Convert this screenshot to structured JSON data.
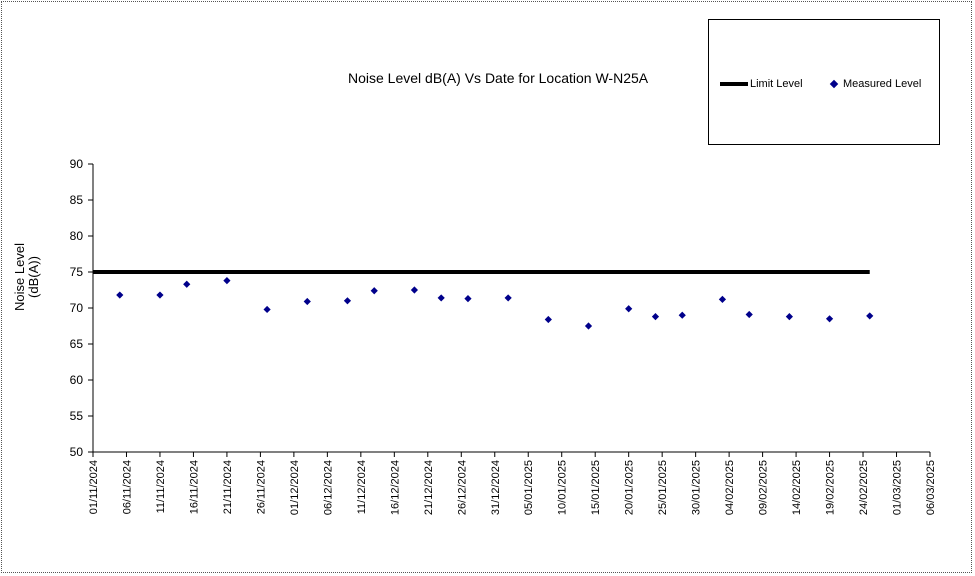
{
  "chart_data": {
    "type": "scatter",
    "title": "Noise Level dB(A) Vs Date for Location W-N25A",
    "ylabel": "Noise Level\n(dB(A))",
    "xlabel": "",
    "ylim": [
      50,
      90
    ],
    "y_ticks": [
      "50",
      "55",
      "60",
      "65",
      "70",
      "75",
      "80",
      "85",
      "90"
    ],
    "x_axis": {
      "start": "2024-11-01",
      "end": "2025-03-06",
      "tick_labels": [
        "01/11/2024",
        "06/11/2024",
        "11/11/2024",
        "16/11/2024",
        "21/11/2024",
        "26/11/2024",
        "01/12/2024",
        "06/12/2024",
        "11/12/2024",
        "16/12/2024",
        "21/12/2024",
        "26/12/2024",
        "31/12/2024",
        "05/01/2025",
        "10/01/2025",
        "15/01/2025",
        "20/01/2025",
        "25/01/2025",
        "30/01/2025",
        "04/02/2025",
        "09/02/2025",
        "14/02/2025",
        "19/02/2025",
        "24/02/2025",
        "01/03/2025",
        "06/03/2025"
      ]
    },
    "grid": false,
    "legend_position": "top-right",
    "series": [
      {
        "name": "Limit Level",
        "kind": "line",
        "color": "#000000",
        "x": [
          "2024-11-01",
          "2025-02-25"
        ],
        "y": [
          75,
          75
        ]
      },
      {
        "name": "Measured Level",
        "kind": "scatter",
        "marker": "diamond",
        "color": "#00008b",
        "x": [
          "2024-11-05",
          "2024-11-11",
          "2024-11-15",
          "2024-11-21",
          "2024-11-27",
          "2024-12-03",
          "2024-12-09",
          "2024-12-13",
          "2024-12-19",
          "2024-12-23",
          "2024-12-27",
          "2025-01-02",
          "2025-01-08",
          "2025-01-14",
          "2025-01-20",
          "2025-01-24",
          "2025-01-28",
          "2025-02-03",
          "2025-02-07",
          "2025-02-13",
          "2025-02-19",
          "2025-02-25"
        ],
        "y": [
          71.8,
          71.8,
          73.3,
          73.8,
          69.8,
          70.9,
          71.0,
          72.4,
          72.5,
          71.4,
          71.3,
          71.4,
          68.4,
          67.5,
          69.9,
          68.8,
          69.0,
          71.2,
          69.1,
          68.8,
          68.5,
          68.9
        ]
      }
    ]
  }
}
